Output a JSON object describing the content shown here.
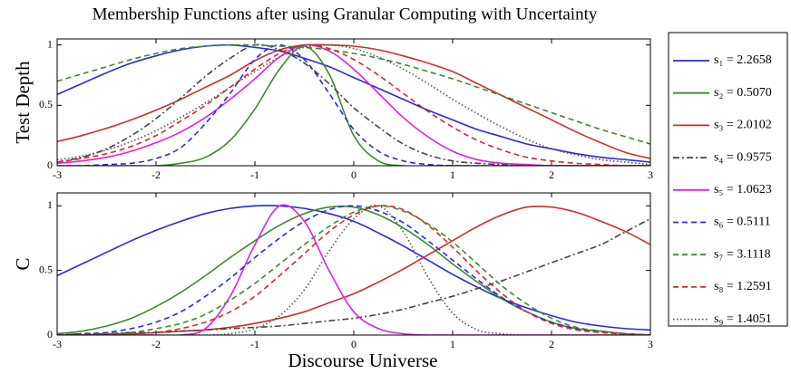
{
  "chart_data": [
    {
      "type": "line",
      "title": "Membership Functions after using Granular Computing with Uncertainty",
      "y_label": "Test Depth",
      "x": [
        -3,
        -2.75,
        -2.5,
        -2.25,
        -2,
        -1.75,
        -1.5,
        -1.25,
        -1,
        -0.75,
        -0.5,
        -0.25,
        0,
        0.25,
        0.5,
        0.75,
        1,
        1.25,
        1.5,
        1.75,
        2,
        2.25,
        2.5,
        2.75,
        3
      ],
      "xlim": [
        -3,
        3
      ],
      "xticks": [
        -3,
        -2,
        -1,
        0,
        1,
        2,
        3
      ],
      "ylim": [
        0,
        1.05
      ],
      "yticks": [
        0,
        0.5,
        1
      ],
      "series": [
        {
          "name": "s₁ = 2.2658",
          "color": "#2a2ad8",
          "linestyle": "solid",
          "values": [
            0.59,
            0.68,
            0.77,
            0.85,
            0.91,
            0.96,
            0.99,
            1,
            0.98,
            0.95,
            0.89,
            0.82,
            0.73,
            0.64,
            0.55,
            0.46,
            0.38,
            0.3,
            0.24,
            0.18,
            0.14,
            0.1,
            0.07,
            0.05,
            0.03
          ]
        },
        {
          "name": "s₂ = 0.5070",
          "color": "#3b8a2b",
          "linestyle": "solid",
          "values": [
            0,
            0,
            0,
            0,
            0,
            0.02,
            0.07,
            0.21,
            0.47,
            0.8,
            0.99,
            0.76,
            0.25,
            0.04,
            0,
            0,
            0,
            0,
            0,
            0,
            0,
            0,
            0,
            0,
            0
          ]
        },
        {
          "name": "s₃ = 2.0102",
          "color": "#d22b2b",
          "linestyle": "solid",
          "values": [
            0.2,
            0.25,
            0.31,
            0.38,
            0.46,
            0.55,
            0.65,
            0.75,
            0.87,
            0.96,
            1,
            1,
            0.99,
            0.96,
            0.91,
            0.85,
            0.78,
            0.68,
            0.58,
            0.48,
            0.38,
            0.28,
            0.19,
            0.11,
            0.06
          ]
        },
        {
          "name": "s₄ = 0.9575",
          "color": "#444444",
          "linestyle": "dashdot",
          "values": [
            0.03,
            0.07,
            0.14,
            0.25,
            0.39,
            0.56,
            0.74,
            0.89,
            1,
            0.96,
            0.85,
            0.68,
            0.48,
            0.32,
            0.18,
            0.09,
            0.04,
            0.02,
            0.01,
            0,
            0,
            0,
            0,
            0,
            0
          ]
        },
        {
          "name": "s₅ = 1.0623",
          "color": "#e020e0",
          "linestyle": "solid",
          "values": [
            0.02,
            0.04,
            0.07,
            0.12,
            0.19,
            0.28,
            0.4,
            0.55,
            0.72,
            0.9,
            1,
            0.95,
            0.8,
            0.6,
            0.4,
            0.24,
            0.12,
            0.05,
            0.02,
            0.01,
            0,
            0,
            0,
            0,
            0
          ]
        },
        {
          "name": "s₆ = 0.5111",
          "color": "#2a2ad8",
          "linestyle": "dashed",
          "values": [
            0,
            0,
            0.01,
            0.02,
            0.06,
            0.15,
            0.35,
            0.6,
            0.88,
            1,
            0.88,
            0.6,
            0.3,
            0.12,
            0.04,
            0.01,
            0,
            0,
            0,
            0,
            0,
            0,
            0,
            0,
            0
          ]
        },
        {
          "name": "s₇ = 3.1118",
          "color": "#3b8a2b",
          "linestyle": "dashed",
          "values": [
            0.7,
            0.76,
            0.82,
            0.88,
            0.93,
            0.97,
            0.99,
            1,
            1,
            0.99,
            0.98,
            0.96,
            0.93,
            0.89,
            0.84,
            0.78,
            0.72,
            0.65,
            0.58,
            0.51,
            0.44,
            0.37,
            0.3,
            0.24,
            0.18
          ]
        },
        {
          "name": "s₈ = 1.2591",
          "color": "#d22b2b",
          "linestyle": "dashed",
          "values": [
            0.03,
            0.06,
            0.1,
            0.16,
            0.25,
            0.37,
            0.5,
            0.65,
            0.8,
            0.93,
            1,
            0.97,
            0.88,
            0.75,
            0.6,
            0.45,
            0.32,
            0.21,
            0.13,
            0.07,
            0.04,
            0.02,
            0.01,
            0,
            0
          ]
        },
        {
          "name": "s₉ = 1.4051",
          "color": "#555555",
          "linestyle": "dotted",
          "values": [
            0.05,
            0.08,
            0.13,
            0.2,
            0.29,
            0.4,
            0.52,
            0.65,
            0.78,
            0.9,
            0.98,
            1,
            0.97,
            0.9,
            0.8,
            0.68,
            0.55,
            0.43,
            0.32,
            0.22,
            0.14,
            0.09,
            0.05,
            0.03,
            0.01
          ]
        }
      ]
    },
    {
      "type": "line",
      "y_label": "C",
      "x_label": "Discourse Universe",
      "x": [
        -3,
        -2.75,
        -2.5,
        -2.25,
        -2,
        -1.75,
        -1.5,
        -1.25,
        -1,
        -0.75,
        -0.5,
        -0.25,
        0,
        0.25,
        0.5,
        0.75,
        1,
        1.25,
        1.5,
        1.75,
        2,
        2.25,
        2.5,
        2.75,
        3
      ],
      "xlim": [
        -3,
        3
      ],
      "xticks": [
        -3,
        -2,
        -1,
        0,
        1,
        2,
        3
      ],
      "ylim": [
        0,
        1.1
      ],
      "yticks": [
        0,
        0.5,
        1
      ],
      "series": [
        {
          "color": "#2a2ad8",
          "linestyle": "solid",
          "values": [
            0.46,
            0.55,
            0.64,
            0.73,
            0.81,
            0.88,
            0.94,
            0.98,
            1,
            1,
            0.98,
            0.94,
            0.88,
            0.79,
            0.69,
            0.58,
            0.47,
            0.37,
            0.28,
            0.21,
            0.15,
            0.1,
            0.07,
            0.05,
            0.04
          ]
        },
        {
          "color": "#3b8a2b",
          "linestyle": "solid",
          "values": [
            0.01,
            0.03,
            0.07,
            0.13,
            0.22,
            0.33,
            0.46,
            0.6,
            0.73,
            0.85,
            0.94,
            0.99,
            0.99,
            0.93,
            0.83,
            0.7,
            0.55,
            0.41,
            0.28,
            0.18,
            0.1,
            0.05,
            0.03,
            0.01,
            0
          ]
        },
        {
          "color": "#d22b2b",
          "linestyle": "solid",
          "values": [
            0,
            0,
            0.01,
            0.01,
            0.02,
            0.03,
            0.04,
            0.06,
            0.09,
            0.13,
            0.18,
            0.25,
            0.32,
            0.41,
            0.51,
            0.62,
            0.73,
            0.84,
            0.93,
            0.99,
            0.99,
            0.95,
            0.88,
            0.8,
            0.7
          ]
        },
        {
          "color": "#444444",
          "linestyle": "dashdot",
          "values": [
            0,
            0.01,
            0.01,
            0.02,
            0.02,
            0.03,
            0.04,
            0.05,
            0.06,
            0.07,
            0.09,
            0.11,
            0.13,
            0.16,
            0.2,
            0.25,
            0.3,
            0.36,
            0.42,
            0.49,
            0.56,
            0.63,
            0.7,
            0.8,
            0.9
          ]
        },
        {
          "color": "#e020e0",
          "linestyle": "solid",
          "values": [
            0,
            0,
            0,
            0,
            0,
            0,
            0.05,
            0.3,
            0.7,
            1,
            0.88,
            0.5,
            0.18,
            0.05,
            0.01,
            0,
            0,
            0,
            0,
            0,
            0,
            0,
            0,
            0,
            0
          ]
        },
        {
          "color": "#2a2ad8",
          "linestyle": "dashed",
          "values": [
            0,
            0.01,
            0.02,
            0.05,
            0.1,
            0.18,
            0.3,
            0.44,
            0.6,
            0.75,
            0.88,
            0.97,
            1,
            0.96,
            0.87,
            0.73,
            0.58,
            0.43,
            0.29,
            0.18,
            0.1,
            0.05,
            0.02,
            0.01,
            0
          ]
        },
        {
          "color": "#3b8a2b",
          "linestyle": "dashed",
          "values": [
            0,
            0,
            0.01,
            0.02,
            0.05,
            0.09,
            0.16,
            0.27,
            0.4,
            0.55,
            0.7,
            0.84,
            0.95,
            1,
            0.96,
            0.86,
            0.72,
            0.55,
            0.38,
            0.24,
            0.13,
            0.06,
            0.03,
            0.01,
            0
          ]
        },
        {
          "color": "#d22b2b",
          "linestyle": "dashed",
          "values": [
            0,
            0,
            0,
            0.01,
            0.02,
            0.05,
            0.1,
            0.18,
            0.3,
            0.46,
            0.63,
            0.8,
            0.93,
            1,
            0.97,
            0.85,
            0.68,
            0.49,
            0.32,
            0.18,
            0.09,
            0.04,
            0.02,
            0.01,
            0
          ]
        },
        {
          "color": "#555555",
          "linestyle": "dotted",
          "values": [
            0,
            0,
            0,
            0,
            0,
            0,
            0,
            0.01,
            0.05,
            0.15,
            0.35,
            0.65,
            0.9,
            1,
            0.8,
            0.45,
            0.17,
            0.04,
            0.01,
            0,
            0,
            0,
            0,
            0,
            0
          ]
        }
      ]
    }
  ]
}
